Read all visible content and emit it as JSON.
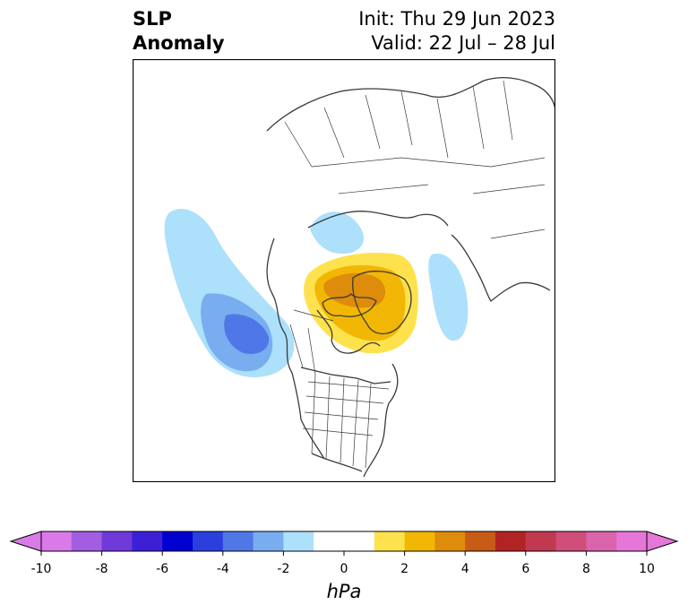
{
  "title": {
    "variable_line1": "SLP",
    "variable_line2": "Anomaly",
    "init_label": "Init: Thu 29 Jun 2023",
    "valid_label": "Valid: 22 Jul – 28 Jul"
  },
  "map": {
    "projection": "polar-stereographic-north",
    "region": "North America / Arctic / Greenland",
    "features": [
      "coastlines",
      "country-borders",
      "us-state-borders",
      "canada-province-borders"
    ],
    "anomaly_centers": [
      {
        "name": "north-pacific-low",
        "sign": "negative",
        "min_hpa": -5
      },
      {
        "name": "greenland-high",
        "sign": "positive",
        "max_hpa": 4
      },
      {
        "name": "beaufort-low",
        "sign": "negative",
        "min_hpa": -2
      },
      {
        "name": "norwegian-sea-low",
        "sign": "negative",
        "min_hpa": -2
      }
    ]
  },
  "colorbar": {
    "label": "hPa",
    "ticks": [
      "-10",
      "-8",
      "-6",
      "-4",
      "-2",
      "0",
      "2",
      "4",
      "6",
      "8",
      "10"
    ],
    "levels": [
      -10,
      -9,
      -8,
      -7,
      -6,
      -5,
      -4,
      -3,
      -2,
      -1,
      1,
      2,
      3,
      4,
      5,
      6,
      7,
      8,
      9,
      10
    ],
    "colors": [
      "#d97ae8",
      "#a35de0",
      "#6f3ad9",
      "#3d20d6",
      "#0000d0",
      "#2a3fdc",
      "#4f78e6",
      "#78aef0",
      "#ade0fa",
      "#ffffff",
      "#fde24e",
      "#f2b705",
      "#de8c0c",
      "#c85b16",
      "#b22424",
      "#c0394f",
      "#cf4f7a",
      "#da65ac",
      "#e676d8"
    ],
    "extend": "both"
  }
}
